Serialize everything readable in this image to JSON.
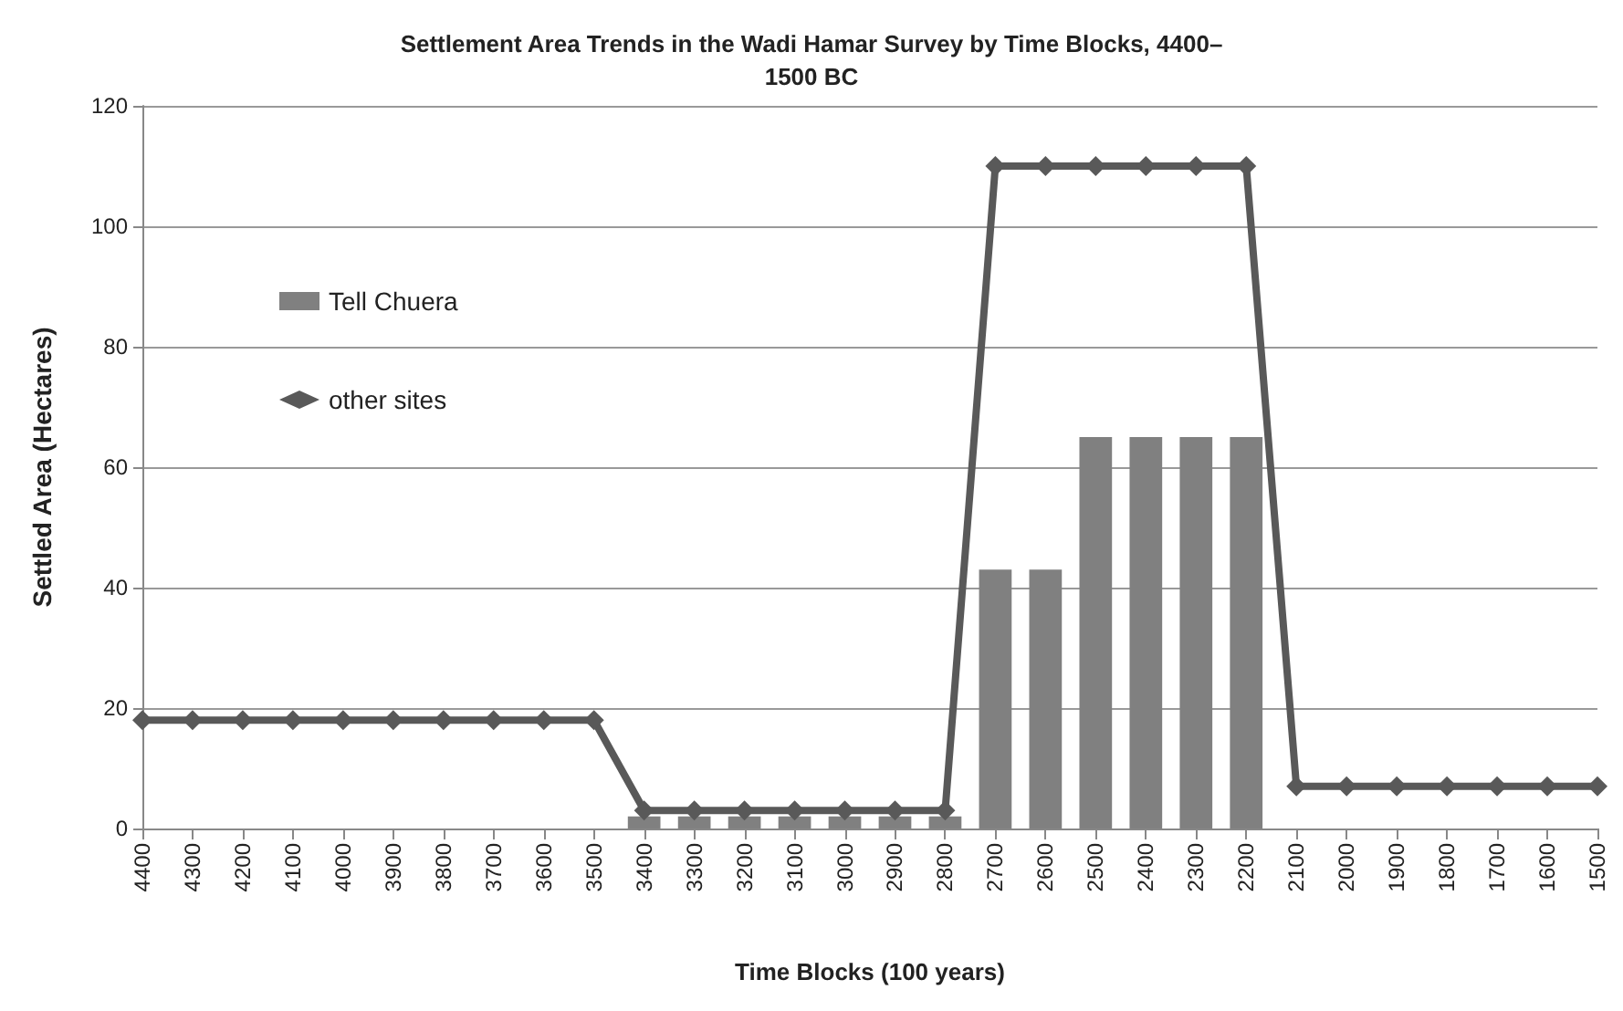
{
  "chart_data": {
    "type": "bar",
    "title": "Settlement Area Trends in the Wadi Hamar Survey by Time Blocks, 4400–\n1500 BC",
    "xlabel": "Time Blocks (100 years)",
    "ylabel": "Settled Area (Hectares)",
    "categories": [
      "4400",
      "4300",
      "4200",
      "4100",
      "4000",
      "3900",
      "3800",
      "3700",
      "3600",
      "3500",
      "3400",
      "3300",
      "3200",
      "3100",
      "3000",
      "2900",
      "2800",
      "2700",
      "2600",
      "2500",
      "2400",
      "2300",
      "2200",
      "2100",
      "2000",
      "1900",
      "1800",
      "1700",
      "1600",
      "1500"
    ],
    "series": [
      {
        "name": "Tell Chuera",
        "color": "#808080",
        "values": [
          null,
          null,
          null,
          null,
          null,
          null,
          null,
          null,
          null,
          null,
          2,
          2,
          2,
          2,
          2,
          2,
          2,
          43,
          43,
          65,
          65,
          65,
          65,
          null,
          null,
          null,
          null,
          null,
          null,
          null
        ]
      },
      {
        "name": "other sites",
        "type": "line",
        "color": "#595959",
        "marker": "diamond",
        "values": [
          18,
          18,
          18,
          18,
          18,
          18,
          18,
          18,
          18,
          18,
          3,
          3,
          3,
          3,
          3,
          3,
          3,
          110,
          110,
          110,
          110,
          110,
          110,
          7,
          7,
          7,
          7,
          7,
          7,
          7
        ]
      }
    ],
    "ylim": [
      0,
      120
    ],
    "yticks": [
      0,
      20,
      40,
      60,
      80,
      100,
      120
    ],
    "grid": "y",
    "legend": "left"
  }
}
